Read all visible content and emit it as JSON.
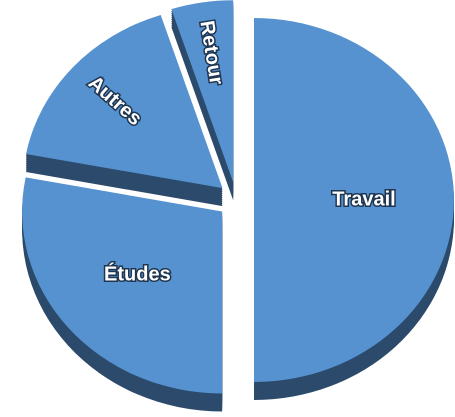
{
  "chart_data": {
    "type": "pie",
    "categories": [
      "Travail",
      "Études",
      "Autres",
      "Retour"
    ],
    "values": [
      50,
      28,
      17,
      5
    ],
    "color": "#5592cf",
    "side_color": "#2c4a6b"
  }
}
